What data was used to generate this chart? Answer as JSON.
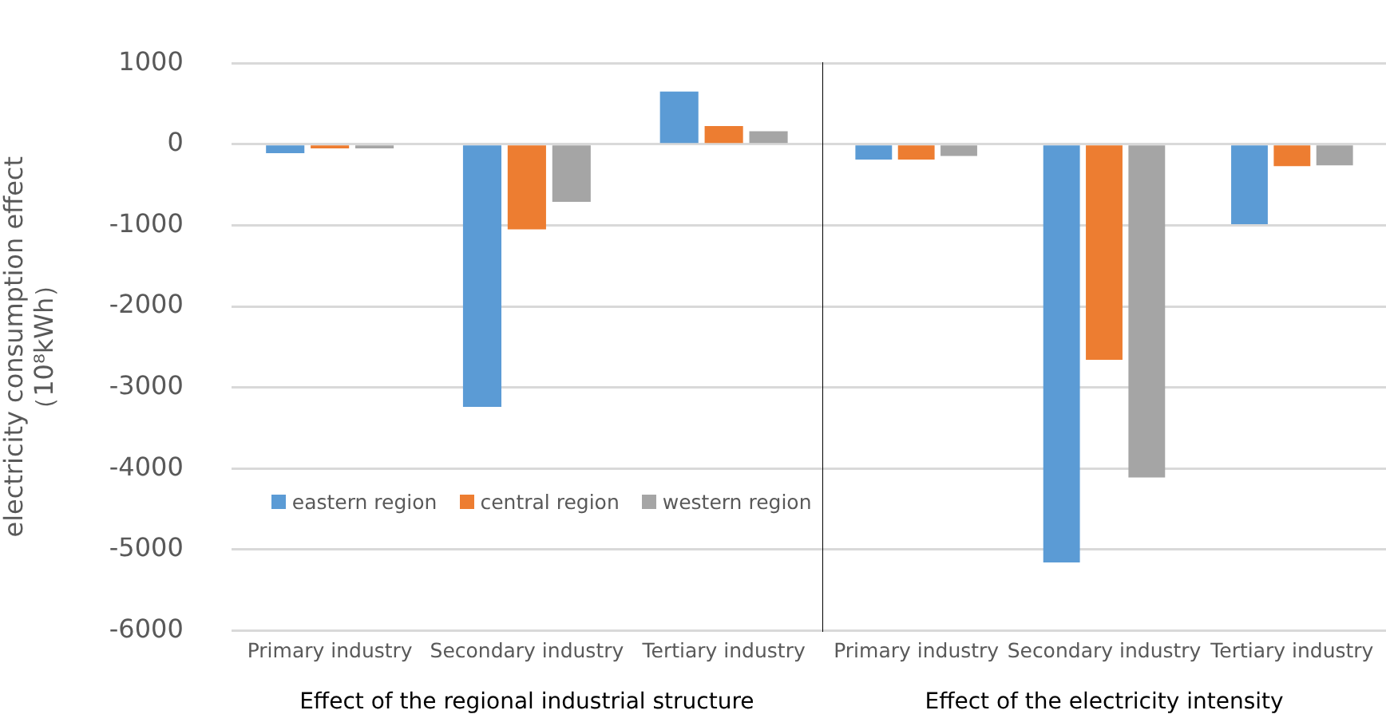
{
  "chart_data": [
    {
      "type": "bar",
      "ylabel": "electricity consumption effect\n（10⁸kWh）",
      "xlabel": "Effect of the regional industrial structure",
      "categories": [
        "Primary industry",
        "Secondary industry",
        "Tertiary industry"
      ],
      "series": [
        {
          "name": "eastern region",
          "color": "#5b9bd5",
          "values": [
            -110,
            -3240,
            650
          ]
        },
        {
          "name": "central region",
          "color": "#ed7d31",
          "values": [
            -50,
            -1050,
            225
          ]
        },
        {
          "name": "western region",
          "color": "#a5a5a5",
          "values": [
            -50,
            -710,
            160
          ]
        }
      ],
      "ylim": [
        -6000,
        1000
      ],
      "yticks": [
        -6000,
        -5000,
        -4000,
        -3000,
        -2000,
        -1000,
        0,
        1000
      ],
      "grid": "y",
      "legend": "bottom left"
    },
    {
      "type": "bar",
      "xlabel": "Effect of the electricity intensity",
      "categories": [
        "Primary industry",
        "Secondary industry",
        "Tertiary industry"
      ],
      "series": [
        {
          "color": "#5b9bd5",
          "values": [
            -190,
            -5160,
            -985
          ]
        },
        {
          "color": "#ed7d31",
          "values": [
            -190,
            -2660,
            -270
          ]
        },
        {
          "color": "#a5a5a5",
          "values": [
            -145,
            -4110,
            -260
          ]
        }
      ],
      "ylim": [
        -6000,
        1000
      ],
      "yticks": [
        -6000,
        -5000,
        -4000,
        -3000,
        -2000,
        -1000,
        0,
        1000
      ],
      "grid": "y",
      "tick_labels": "x"
    }
  ]
}
